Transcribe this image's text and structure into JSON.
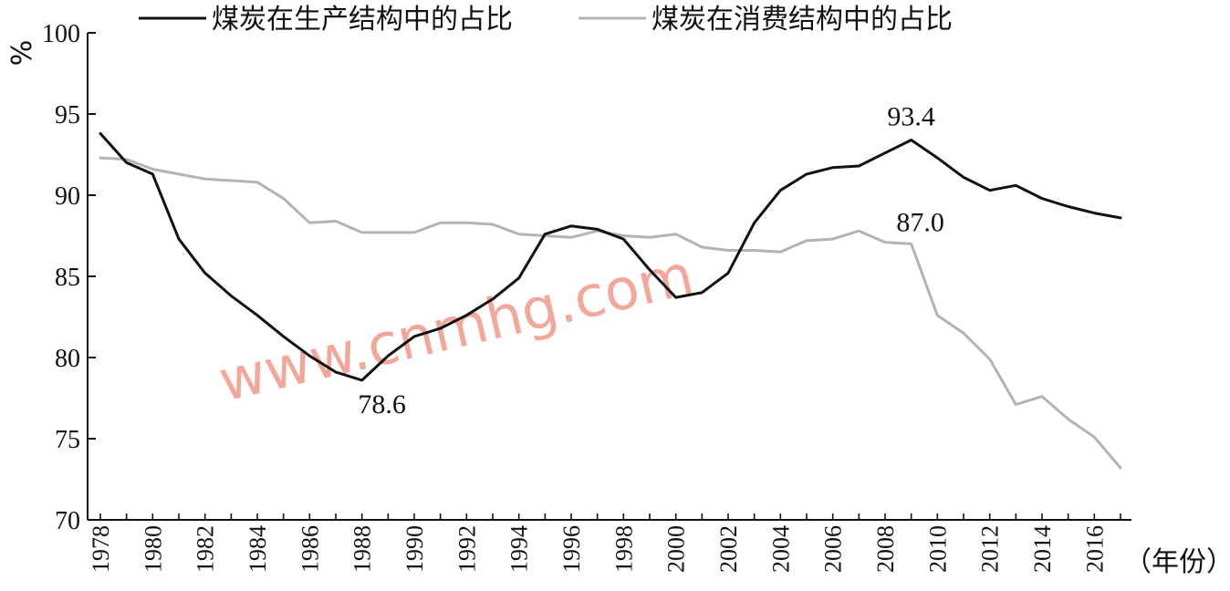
{
  "chart_data": {
    "type": "line",
    "y_unit": "%",
    "x_unit": "（年份）",
    "ylim": [
      70,
      100
    ],
    "yticks": [
      70,
      75,
      80,
      85,
      90,
      95,
      100
    ],
    "xlim": [
      1978,
      2017
    ],
    "xtick_labels": [
      "1978",
      "1980",
      "1982",
      "1984",
      "1986",
      "1988",
      "1990",
      "1992",
      "1994",
      "1996",
      "1998",
      "2000",
      "2002",
      "2004",
      "2006",
      "2008",
      "2010",
      "2012",
      "2014",
      "2016"
    ],
    "grid": false,
    "legend_position": "top",
    "x": [
      1978,
      1979,
      1980,
      1981,
      1982,
      1983,
      1984,
      1985,
      1986,
      1987,
      1988,
      1989,
      1990,
      1991,
      1992,
      1993,
      1994,
      1995,
      1996,
      1997,
      1998,
      1999,
      2000,
      2001,
      2002,
      2003,
      2004,
      2005,
      2006,
      2007,
      2008,
      2009,
      2010,
      2011,
      2012,
      2013,
      2014,
      2015,
      2016,
      2017
    ],
    "series": [
      {
        "name": "煤炭在生产结构中的占比",
        "color": "#111111",
        "values": [
          93.8,
          92.0,
          91.3,
          87.3,
          85.2,
          83.8,
          82.6,
          81.3,
          80.1,
          79.1,
          78.6,
          80.1,
          81.3,
          81.8,
          82.6,
          83.6,
          84.9,
          87.6,
          88.1,
          87.9,
          87.3,
          85.4,
          83.7,
          84.0,
          85.2,
          88.3,
          90.3,
          91.3,
          91.7,
          91.8,
          92.6,
          93.4,
          92.3,
          91.1,
          90.3,
          90.6,
          89.8,
          89.3,
          88.9,
          88.6
        ]
      },
      {
        "name": "煤炭在消费结构中的占比",
        "color": "#b3b3b3",
        "values": [
          92.3,
          92.2,
          91.6,
          91.3,
          91.0,
          90.9,
          90.8,
          89.8,
          88.3,
          88.4,
          87.7,
          87.7,
          87.7,
          88.3,
          88.3,
          88.2,
          87.6,
          87.5,
          87.4,
          87.8,
          87.5,
          87.4,
          87.6,
          86.8,
          86.6,
          86.6,
          86.5,
          87.2,
          87.3,
          87.8,
          87.1,
          87.0,
          82.6,
          81.5,
          79.9,
          77.1,
          77.6,
          76.2,
          75.1,
          73.2
        ]
      }
    ],
    "annotations": [
      {
        "text": "93.4",
        "series": 0,
        "x": 2009
      },
      {
        "text": "78.6",
        "series": 0,
        "x": 1988
      },
      {
        "text": "87.0",
        "series": 1,
        "x": 2009
      }
    ]
  },
  "watermark": "www.cnmhg.com"
}
